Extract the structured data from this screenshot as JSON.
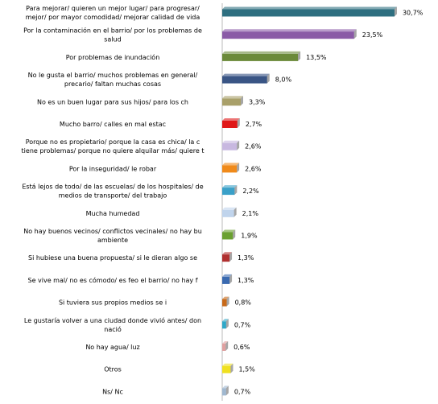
{
  "chart_data": {
    "type": "bar",
    "orientation": "horizontal",
    "categories": [
      [
        "Para mejorar/ quieren un mejor lugar/ para progresar/",
        "mejor/ por mayor comodidad/ mejorar calidad de vida"
      ],
      [
        "Por la contaminación en el barrio/ por los problemas de",
        "salud"
      ],
      [
        "Por problemas de inundación"
      ],
      [
        "No le gusta el barrio/ muchos problemas en general/",
        "precario/ faltan muchas cosas"
      ],
      [
        "No es un buen lugar para sus hijos/ para los ch"
      ],
      [
        "Mucho barro/ calles en mal estac"
      ],
      [
        "Porque no es propietario/ porque la casa es chica/ la c",
        "tiene problemas/ porque no quiere alquilar más/ quiere t"
      ],
      [
        "Por la inseguridad/ le robar"
      ],
      [
        "Está lejos de todo/ de las escuelas/ de los hospitales/ de",
        "medios de transporte/ del trabajo"
      ],
      [
        "Mucha humedad"
      ],
      [
        "No hay buenos vecinos/ conflictos vecinales/ no hay bu",
        "ambiente"
      ],
      [
        "Si hubiese una buena propuesta/ si le dieran algo se"
      ],
      [
        "Se vive mal/ no es cómodo/ es feo el barrio/ no hay f"
      ],
      [
        "Si tuviera sus propios medios se i"
      ],
      [
        "Le gustaría volver a una ciudad donde vivió antes/ don",
        "nació"
      ],
      [
        "No hay agua/ luz"
      ],
      [
        "Otros"
      ],
      [
        "Ns/ Nc"
      ]
    ],
    "values": [
      30.7,
      23.5,
      13.5,
      8.0,
      3.3,
      2.7,
      2.6,
      2.6,
      2.2,
      2.1,
      1.9,
      1.3,
      1.3,
      0.8,
      0.7,
      0.6,
      1.5,
      0.7
    ],
    "value_labels": [
      "30,7%",
      "23,5%",
      "13,5%",
      "8,0%",
      "3,3%",
      "2,7%",
      "2,6%",
      "2,6%",
      "2,2%",
      "2,1%",
      "1,9%",
      "1,3%",
      "1,3%",
      "0,8%",
      "0,7%",
      "0,6%",
      "1,5%",
      "0,7%"
    ],
    "colors": [
      "#2e6f80",
      "#8a5aa6",
      "#6b8a3a",
      "#3a5585",
      "#a9a06a",
      "#e01818",
      "#c8b8e0",
      "#f08a1a",
      "#3aa0c8",
      "#c0d4ec",
      "#6aa030",
      "#b03030",
      "#3a6ab0",
      "#c86a1a",
      "#30a8c8",
      "#e0a0a0",
      "#f0e020",
      "#a0b8d0"
    ]
  }
}
